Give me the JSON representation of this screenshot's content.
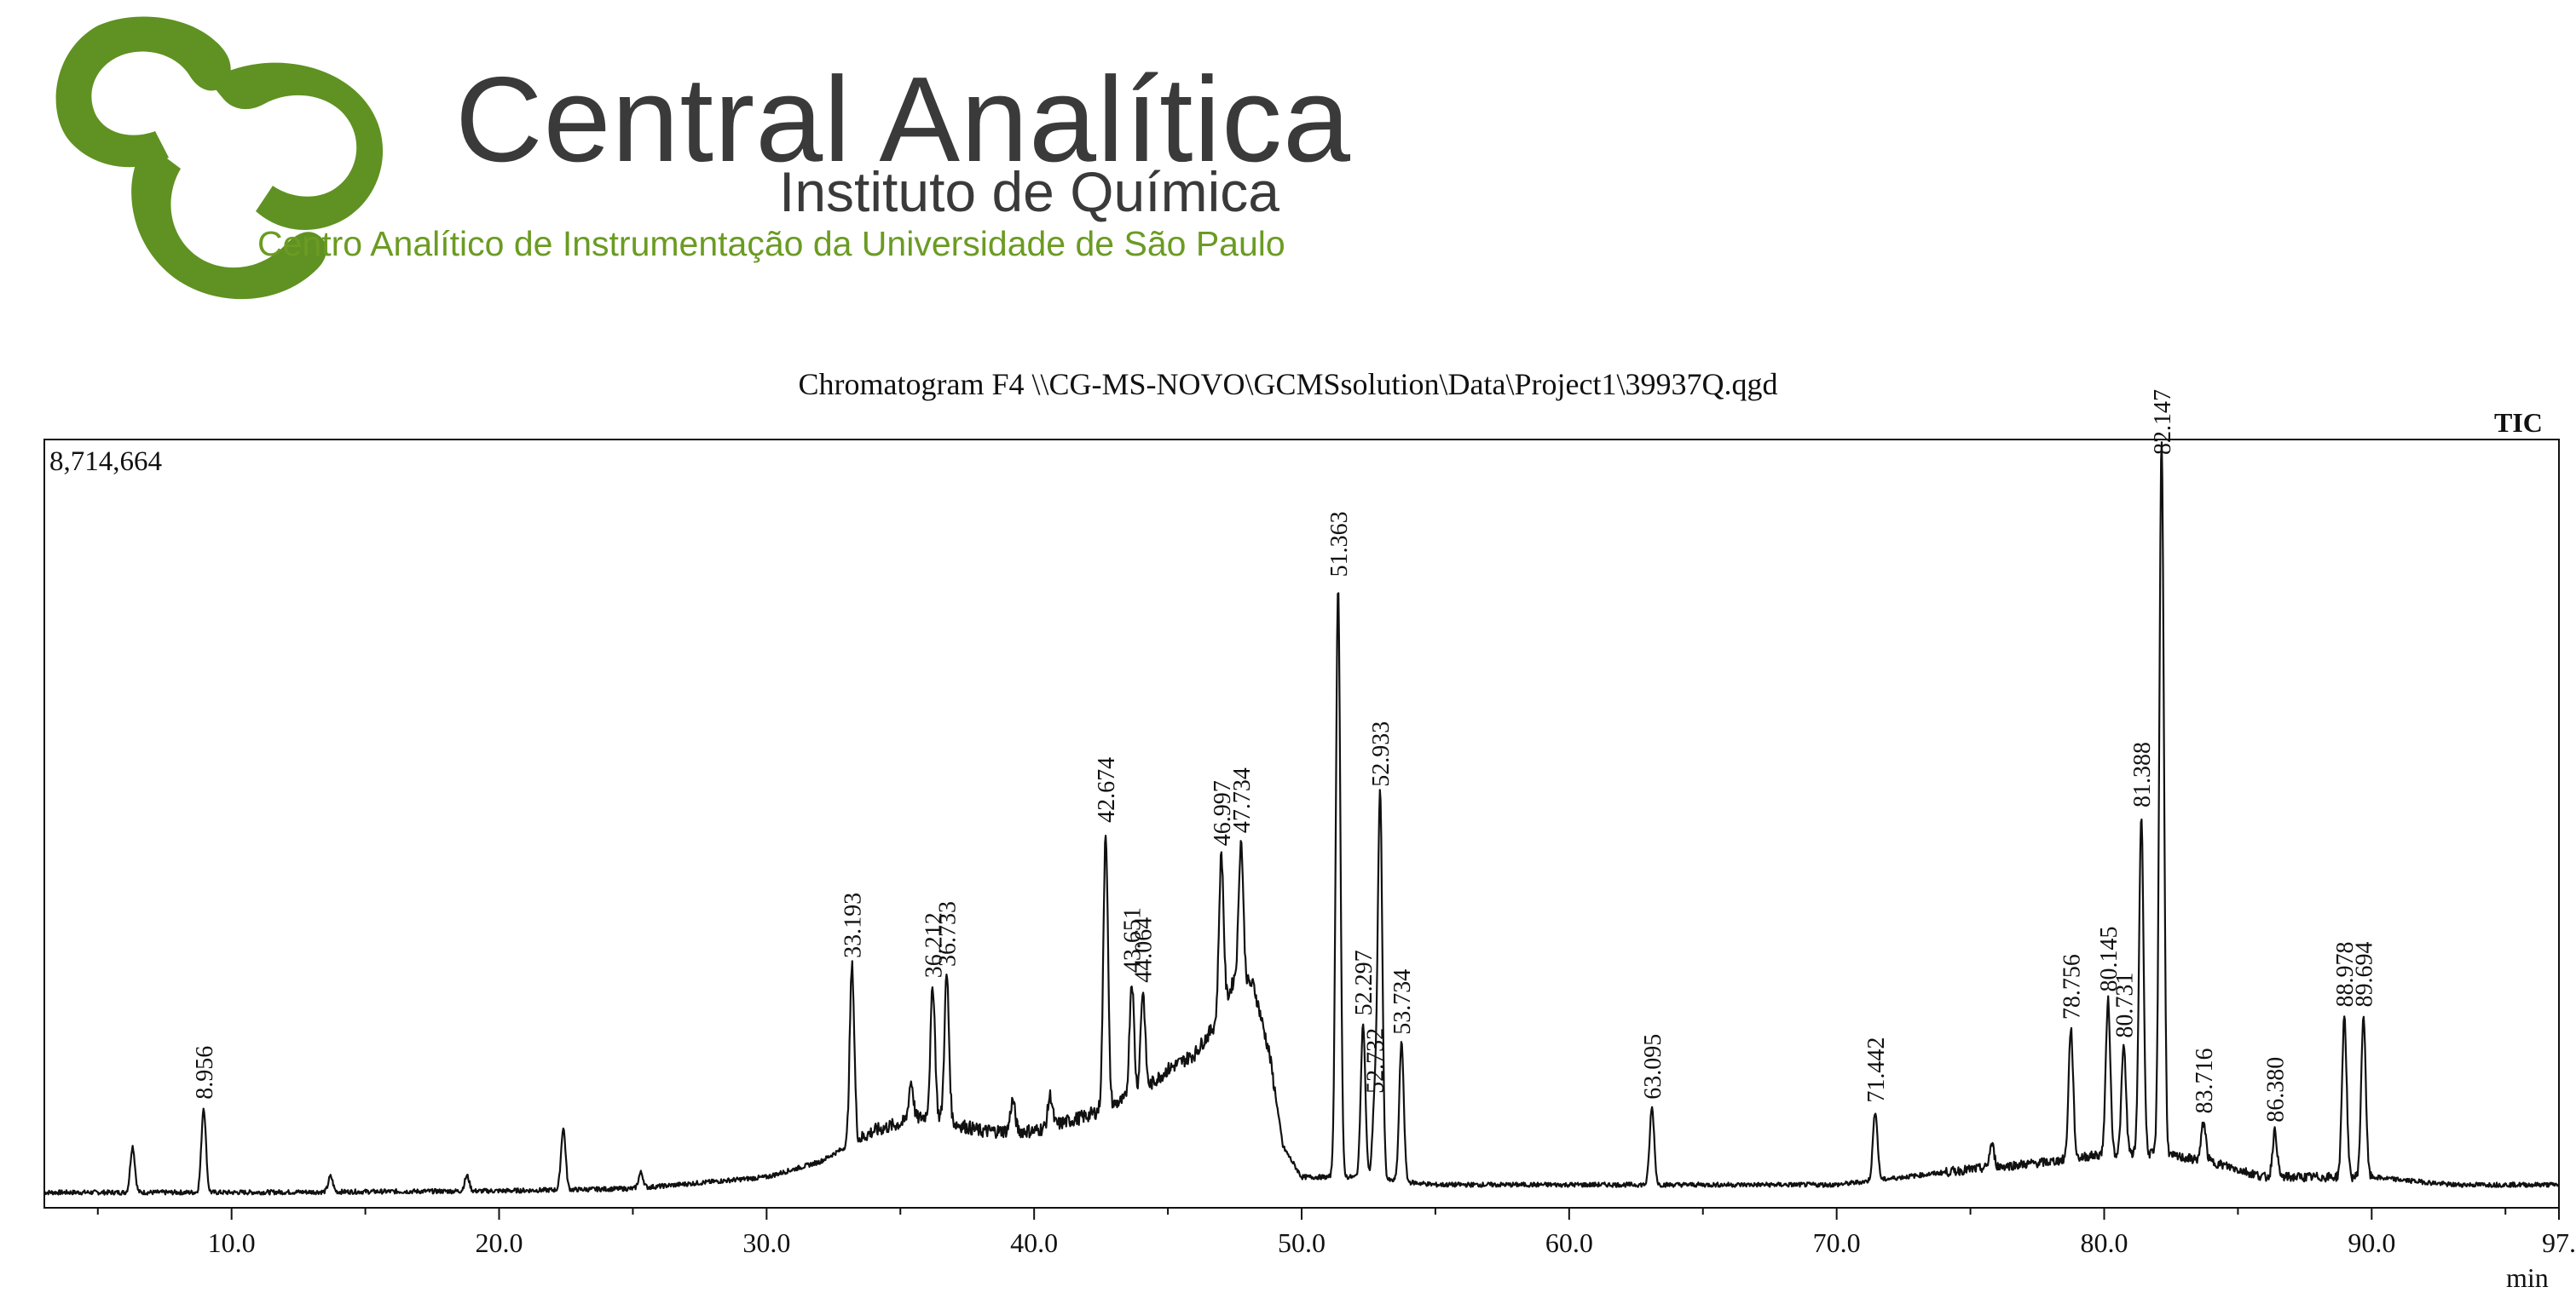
{
  "header": {
    "org_name": "Central Analítica",
    "org_subtitle": "Instituto de Química",
    "org_tagline": "Centro Analítico de Instrumentação da Universidade de São Paulo",
    "logo_color": "#5f9222",
    "text_color": "#3a3a3a"
  },
  "chart_data": {
    "type": "line",
    "title": "Chromatogram F4 \\\\CG-MS-NOVO\\GCMSsolution\\Data\\Project1\\39937Q.qgd",
    "signal_label": "TIC",
    "y_max_label": "8,714,664",
    "xlabel": "min",
    "ylabel": "",
    "xlim": [
      3.0,
      97.0
    ],
    "ylim": [
      0,
      8714664
    ],
    "grid": false,
    "line_color": "#111111",
    "x_ticks": [
      10.0,
      20.0,
      30.0,
      40.0,
      50.0,
      60.0,
      70.0,
      80.0,
      90.0,
      97.0
    ],
    "x_tick_labels": [
      "10.0",
      "20.0",
      "30.0",
      "40.0",
      "50.0",
      "60.0",
      "70.0",
      "80.0",
      "90.0",
      "97."
    ],
    "baseline": [
      [
        3.0,
        0.02
      ],
      [
        10,
        0.02
      ],
      [
        20,
        0.022
      ],
      [
        25,
        0.025
      ],
      [
        30,
        0.04
      ],
      [
        32,
        0.06
      ],
      [
        34,
        0.1
      ],
      [
        36,
        0.12
      ],
      [
        38,
        0.1
      ],
      [
        40,
        0.1
      ],
      [
        42,
        0.12
      ],
      [
        44,
        0.15
      ],
      [
        45,
        0.18
      ],
      [
        46,
        0.2
      ],
      [
        47,
        0.25
      ],
      [
        47.5,
        0.3
      ],
      [
        48.2,
        0.29
      ],
      [
        48.8,
        0.2
      ],
      [
        49.3,
        0.08
      ],
      [
        50,
        0.04
      ],
      [
        52,
        0.04
      ],
      [
        55,
        0.03
      ],
      [
        60,
        0.03
      ],
      [
        65,
        0.03
      ],
      [
        70,
        0.03
      ],
      [
        75,
        0.05
      ],
      [
        78,
        0.06
      ],
      [
        80,
        0.07
      ],
      [
        82,
        0.07
      ],
      [
        84,
        0.06
      ],
      [
        86,
        0.04
      ],
      [
        88,
        0.04
      ],
      [
        90,
        0.04
      ],
      [
        93,
        0.03
      ],
      [
        97,
        0.03
      ]
    ],
    "peaks": [
      {
        "rt": 6.3,
        "height": 0.06,
        "label": ""
      },
      {
        "rt": 8.956,
        "height": 0.11,
        "label": "8.956"
      },
      {
        "rt": 13.7,
        "height": 0.02,
        "label": ""
      },
      {
        "rt": 18.8,
        "height": 0.02,
        "label": ""
      },
      {
        "rt": 22.4,
        "height": 0.08,
        "label": ""
      },
      {
        "rt": 25.3,
        "height": 0.02,
        "label": ""
      },
      {
        "rt": 33.193,
        "height": 0.23,
        "label": "33.193"
      },
      {
        "rt": 35.4,
        "height": 0.05,
        "label": ""
      },
      {
        "rt": 36.212,
        "height": 0.17,
        "label": "36.212"
      },
      {
        "rt": 36.733,
        "height": 0.19,
        "label": "36.733"
      },
      {
        "rt": 39.2,
        "height": 0.04,
        "label": ""
      },
      {
        "rt": 40.6,
        "height": 0.04,
        "label": ""
      },
      {
        "rt": 42.674,
        "height": 0.36,
        "label": "42.674"
      },
      {
        "rt": 43.651,
        "height": 0.15,
        "label": "43.651"
      },
      {
        "rt": 44.064,
        "height": 0.13,
        "label": "44.064"
      },
      {
        "rt": 46.997,
        "height": 0.21,
        "label": "46.997"
      },
      {
        "rt": 47.734,
        "height": 0.18,
        "label": "47.734"
      },
      {
        "rt": 51.363,
        "height": 0.77,
        "label": "51.363"
      },
      {
        "rt": 52.297,
        "height": 0.2,
        "label": "52.297"
      },
      {
        "rt": 52.732,
        "height": 0.1,
        "label": "52.732"
      },
      {
        "rt": 52.933,
        "height": 0.5,
        "label": "52.933"
      },
      {
        "rt": 53.734,
        "height": 0.18,
        "label": "53.734"
      },
      {
        "rt": 63.095,
        "height": 0.1,
        "label": "63.095"
      },
      {
        "rt": 71.442,
        "height": 0.09,
        "label": "71.442"
      },
      {
        "rt": 75.8,
        "height": 0.03,
        "label": ""
      },
      {
        "rt": 78.756,
        "height": 0.17,
        "label": "78.756"
      },
      {
        "rt": 80.145,
        "height": 0.2,
        "label": "80.145"
      },
      {
        "rt": 80.731,
        "height": 0.14,
        "label": "80.731"
      },
      {
        "rt": 81.388,
        "height": 0.44,
        "label": "81.388"
      },
      {
        "rt": 82.147,
        "height": 0.93,
        "label": "82.147"
      },
      {
        "rt": 83.716,
        "height": 0.05,
        "label": "83.716"
      },
      {
        "rt": 86.38,
        "height": 0.06,
        "label": "86.380"
      },
      {
        "rt": 88.978,
        "height": 0.21,
        "label": "88.978"
      },
      {
        "rt": 89.694,
        "height": 0.21,
        "label": "89.694"
      }
    ]
  }
}
